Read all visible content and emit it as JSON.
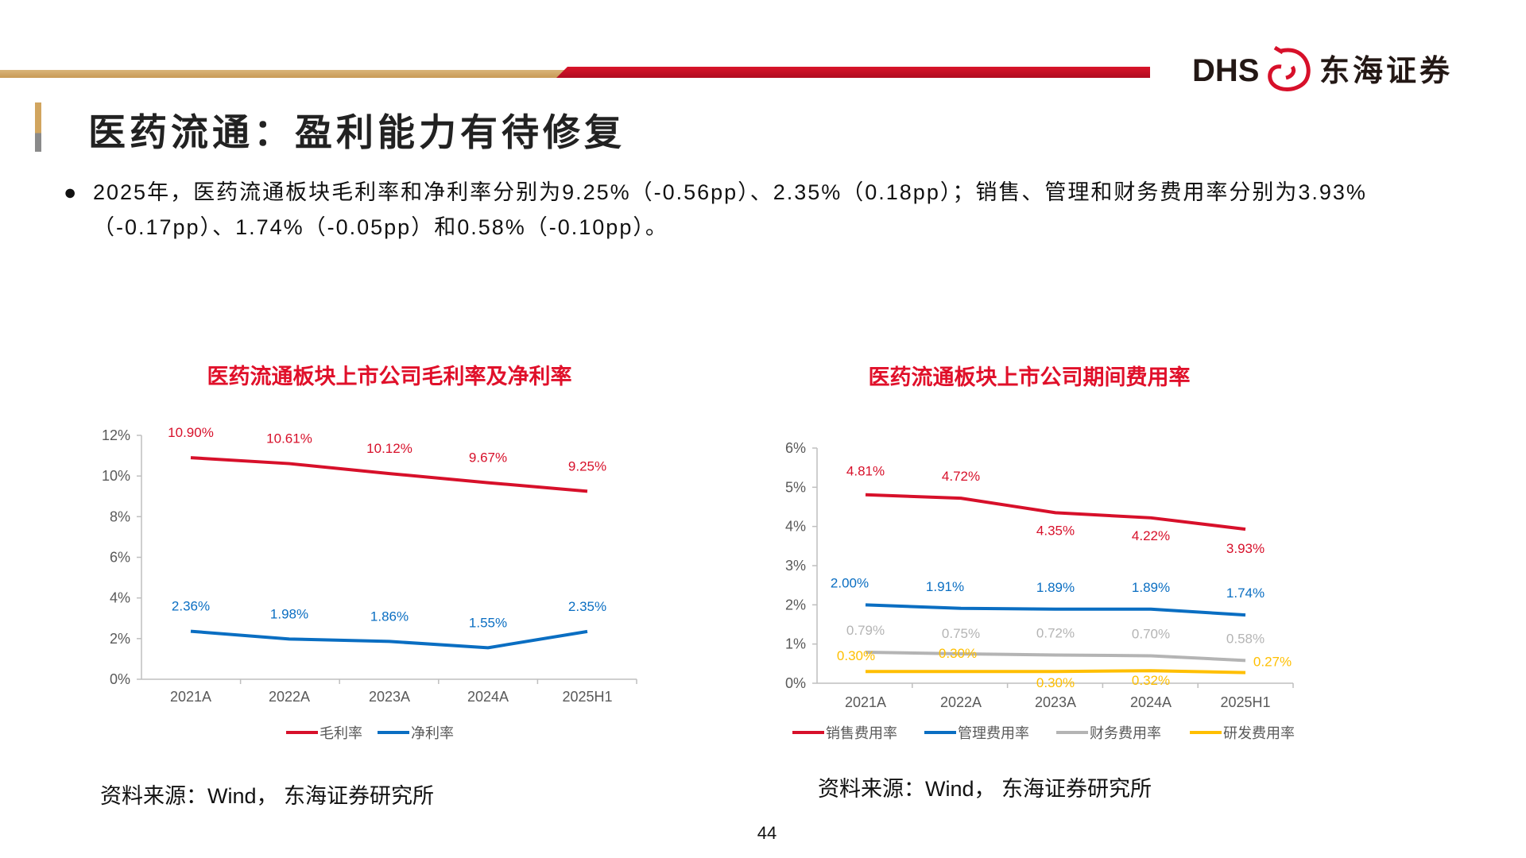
{
  "header": {
    "logo_text": "DHS",
    "logo_cn": "东海证券",
    "accent": "#c8102e",
    "gold": "#d1a55f"
  },
  "title": "医药流通：盈利能力有待修复",
  "bullet": "2025年，医药流通板块毛利率和净利率分别为9.25%（-0.56pp）、2.35%（0.18pp）；销售、管理和财务费用率分别为3.93%（-0.17pp）、1.74%（-0.05pp）和0.58%（-0.10pp）。",
  "page_number": "44",
  "chart_data": [
    {
      "type": "line",
      "title": "医药流通板块上市公司毛利率及净利率",
      "categories": [
        "2021A",
        "2022A",
        "2023A",
        "2024A",
        "2025H1"
      ],
      "yticks": [
        "0%",
        "2%",
        "4%",
        "6%",
        "8%",
        "10%",
        "12%"
      ],
      "ylim": [
        0,
        12
      ],
      "grid": false,
      "legend_placement": "bottom",
      "series": [
        {
          "name": "毛利率",
          "color": "#d7102a",
          "values": [
            10.9,
            10.61,
            10.12,
            9.67,
            9.25
          ],
          "labels": [
            "10.90%",
            "10.61%",
            "10.12%",
            "9.67%",
            "9.25%"
          ]
        },
        {
          "name": "净利率",
          "color": "#0a6ec2",
          "values": [
            2.36,
            1.98,
            1.86,
            1.55,
            2.35
          ],
          "labels": [
            "2.36%",
            "1.98%",
            "1.86%",
            "1.55%",
            "2.35%"
          ]
        }
      ],
      "source": "资料来源：Wind， 东海证券研究所"
    },
    {
      "type": "line",
      "title": "医药流通板块上市公司期间费用率",
      "categories": [
        "2021A",
        "2022A",
        "2023A",
        "2024A",
        "2025H1"
      ],
      "yticks": [
        "0%",
        "1%",
        "2%",
        "3%",
        "4%",
        "5%",
        "6%"
      ],
      "ylim": [
        0,
        6
      ],
      "grid": false,
      "legend_placement": "bottom",
      "series": [
        {
          "name": "销售费用率",
          "color": "#d7102a",
          "values": [
            4.81,
            4.72,
            4.35,
            4.22,
            3.93
          ],
          "labels": [
            "4.81%",
            "4.72%",
            "4.35%",
            "4.22%",
            "3.93%"
          ]
        },
        {
          "name": "管理费用率",
          "color": "#0a6ec2",
          "values": [
            2.0,
            1.91,
            1.89,
            1.89,
            1.74
          ],
          "labels": [
            "2.00%",
            "1.91%",
            "1.89%",
            "1.89%",
            "1.74%"
          ]
        },
        {
          "name": "财务费用率",
          "color": "#b4b4b4",
          "values": [
            0.79,
            0.75,
            0.72,
            0.7,
            0.58
          ],
          "labels": [
            "0.79%",
            "0.75%",
            "0.72%",
            "0.70%",
            "0.58%"
          ]
        },
        {
          "name": "研发费用率",
          "color": "#ffbf00",
          "values": [
            0.3,
            0.3,
            0.3,
            0.32,
            0.27
          ],
          "labels": [
            "0.30%",
            "0.30%",
            "0.30%",
            "0.32%",
            "0.27%"
          ]
        }
      ],
      "source": "资料来源：Wind， 东海证券研究所"
    }
  ]
}
